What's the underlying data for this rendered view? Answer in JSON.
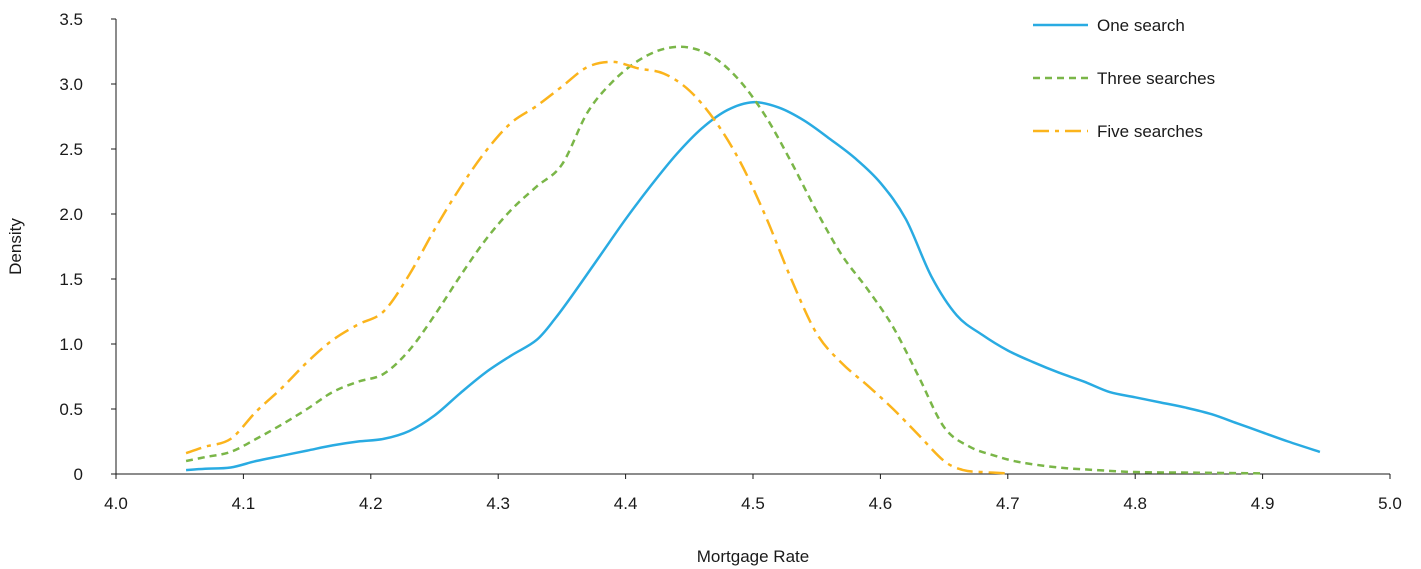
{
  "chart_data": {
    "type": "line",
    "title": "",
    "xlabel": "Mortgage Rate",
    "ylabel": "Density",
    "xlim": [
      4.0,
      5.0
    ],
    "ylim": [
      0,
      3.5
    ],
    "xticks": [
      4.0,
      4.1,
      4.2,
      4.3,
      4.4,
      4.5,
      4.6,
      4.7,
      4.8,
      4.9,
      5.0
    ],
    "xtick_labels": [
      "4.0",
      "4.1",
      "4.2",
      "4.3",
      "4.4",
      "4.5",
      "4.6",
      "4.7",
      "4.8",
      "4.9",
      "5.0"
    ],
    "yticks": [
      0,
      0.5,
      1.0,
      1.5,
      2.0,
      2.5,
      3.0,
      3.5
    ],
    "ytick_labels": [
      "0",
      "0.5",
      "1.0",
      "1.5",
      "2.0",
      "2.5",
      "3.0",
      "3.5"
    ],
    "grid": false,
    "legend_position": "top-right",
    "series": [
      {
        "name": "One search",
        "color": "#29abe2",
        "dash": "solid",
        "x": [
          4.055,
          4.07,
          4.09,
          4.11,
          4.13,
          4.15,
          4.17,
          4.19,
          4.21,
          4.23,
          4.25,
          4.27,
          4.29,
          4.31,
          4.33,
          4.345,
          4.36,
          4.38,
          4.4,
          4.42,
          4.44,
          4.46,
          4.48,
          4.5,
          4.52,
          4.54,
          4.56,
          4.58,
          4.6,
          4.62,
          4.64,
          4.66,
          4.68,
          4.7,
          4.72,
          4.74,
          4.76,
          4.78,
          4.8,
          4.82,
          4.84,
          4.86,
          4.88,
          4.9,
          4.92,
          4.945
        ],
        "y": [
          0.03,
          0.04,
          0.05,
          0.1,
          0.14,
          0.18,
          0.22,
          0.25,
          0.27,
          0.33,
          0.45,
          0.62,
          0.78,
          0.91,
          1.03,
          1.2,
          1.4,
          1.68,
          1.96,
          2.22,
          2.46,
          2.66,
          2.8,
          2.86,
          2.82,
          2.72,
          2.58,
          2.43,
          2.24,
          1.96,
          1.52,
          1.22,
          1.07,
          0.95,
          0.86,
          0.78,
          0.71,
          0.63,
          0.59,
          0.55,
          0.51,
          0.46,
          0.39,
          0.32,
          0.25,
          0.17
        ]
      },
      {
        "name": "Three searches",
        "color": "#7ab648",
        "dash": "dashed",
        "x": [
          4.055,
          4.07,
          4.09,
          4.11,
          4.13,
          4.15,
          4.17,
          4.19,
          4.21,
          4.23,
          4.25,
          4.27,
          4.29,
          4.31,
          4.33,
          4.35,
          4.37,
          4.39,
          4.41,
          4.43,
          4.45,
          4.47,
          4.49,
          4.51,
          4.53,
          4.55,
          4.57,
          4.59,
          4.61,
          4.63,
          4.65,
          4.67,
          4.69,
          4.71,
          4.74,
          4.77,
          4.8,
          4.85,
          4.9
        ],
        "y": [
          0.1,
          0.13,
          0.17,
          0.27,
          0.38,
          0.5,
          0.63,
          0.71,
          0.77,
          0.95,
          1.22,
          1.52,
          1.8,
          2.03,
          2.21,
          2.38,
          2.78,
          3.02,
          3.18,
          3.27,
          3.28,
          3.2,
          3.02,
          2.75,
          2.4,
          2.02,
          1.68,
          1.42,
          1.13,
          0.75,
          0.36,
          0.21,
          0.14,
          0.09,
          0.05,
          0.03,
          0.015,
          0.01,
          0.005
        ]
      },
      {
        "name": "Five searches",
        "color": "#fbb41c",
        "dash": "longdash",
        "x": [
          4.055,
          4.07,
          4.09,
          4.11,
          4.13,
          4.15,
          4.17,
          4.19,
          4.21,
          4.23,
          4.25,
          4.27,
          4.29,
          4.31,
          4.33,
          4.35,
          4.37,
          4.39,
          4.41,
          4.43,
          4.45,
          4.47,
          4.49,
          4.51,
          4.53,
          4.55,
          4.57,
          4.59,
          4.61,
          4.63,
          4.65,
          4.665,
          4.68,
          4.7
        ],
        "y": [
          0.16,
          0.21,
          0.27,
          0.48,
          0.66,
          0.86,
          1.03,
          1.15,
          1.25,
          1.53,
          1.88,
          2.2,
          2.48,
          2.7,
          2.83,
          2.98,
          3.13,
          3.17,
          3.12,
          3.08,
          2.95,
          2.72,
          2.4,
          1.98,
          1.5,
          1.08,
          0.85,
          0.68,
          0.5,
          0.3,
          0.1,
          0.03,
          0.015,
          0.005
        ]
      }
    ]
  }
}
